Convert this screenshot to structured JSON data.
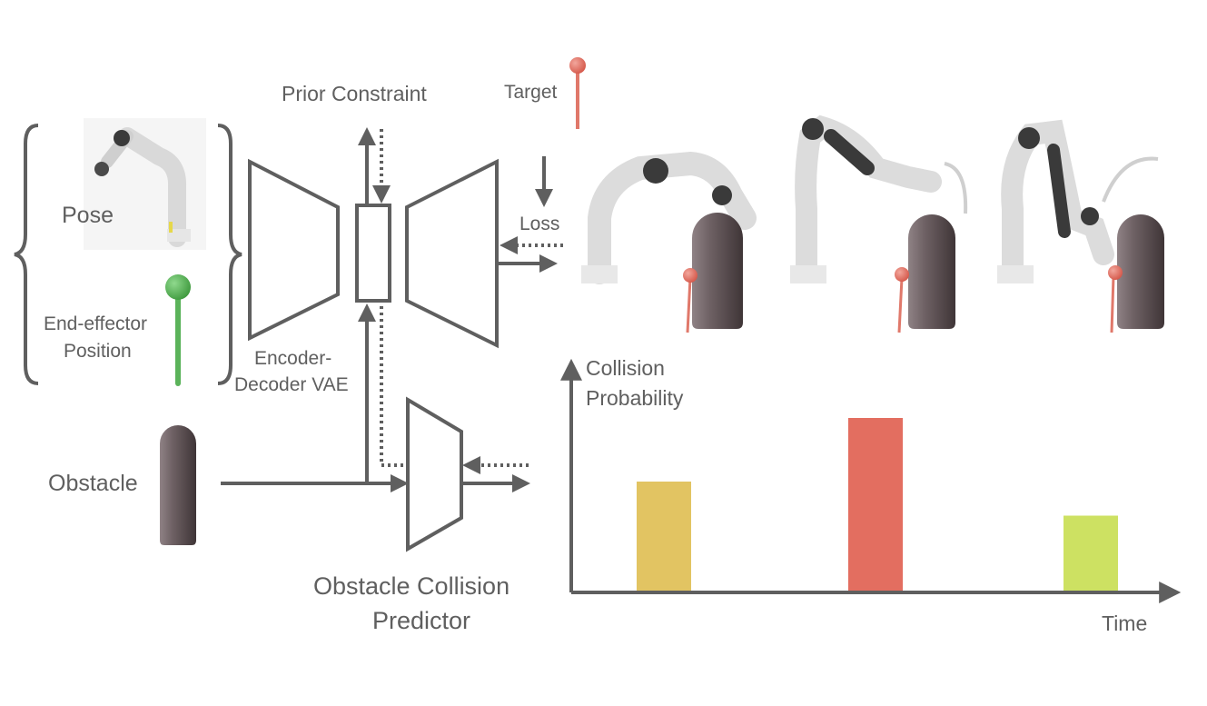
{
  "labels": {
    "prior_constraint": "Prior Constraint",
    "target": "Target",
    "loss": "Loss",
    "pose": "Pose",
    "end_effector_line1": "End-effector",
    "end_effector_line2": "Position",
    "encoder_line1": "Encoder-",
    "encoder_line2": "Decoder VAE",
    "obstacle": "Obstacle",
    "predictor_line1": "Obstacle Collision",
    "predictor_line2": "Predictor"
  },
  "chart_data": {
    "type": "bar",
    "ylabel_line1": "Collision",
    "ylabel_line2": "Probability",
    "xlabel": "Time",
    "values": [
      0.48,
      0.76,
      0.33
    ],
    "ylim": [
      0,
      1
    ],
    "colors": [
      "#e2c462",
      "#e36e60",
      "#cde162"
    ],
    "grid": false
  },
  "colors": {
    "line": "#5f5f5f",
    "target_marker": "#e0786a",
    "end_effector_marker": "#5bb35a",
    "obstacle": "#6e6164",
    "robot": "#e4e4e4"
  },
  "icons": [
    "pose-robot-icon",
    "end-effector-pin-icon",
    "obstacle-capsule-icon",
    "target-pin-icon",
    "robot-arm-icon"
  ]
}
